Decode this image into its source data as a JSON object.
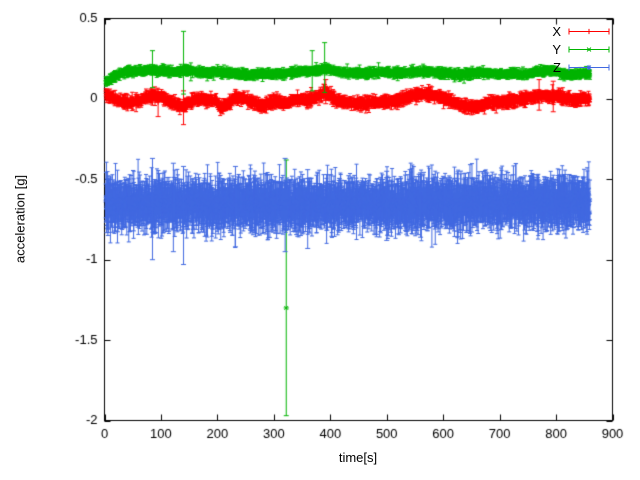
{
  "chart_data": {
    "type": "scatter",
    "style": "points-with-errorbars",
    "title": "",
    "xlabel": "time[s]",
    "ylabel": "acceleration [g]",
    "xlim": [
      0,
      900
    ],
    "ylim": [
      -2,
      0.5
    ],
    "xticks": [
      0,
      100,
      200,
      300,
      400,
      500,
      600,
      700,
      800,
      900
    ],
    "ytick_values": [
      0.5,
      0,
      -0.5,
      -1,
      -1.5,
      -2
    ],
    "ytick_labels": [
      "0.5",
      "0",
      "-0.5",
      "-1",
      "-1.5",
      "-2"
    ],
    "grid": false,
    "legend_position": "top-right",
    "background": "#ffffff",
    "axis_color": "#000000",
    "t_range": [
      2,
      860
    ],
    "t_step": 0.5,
    "seed": 7,
    "series": [
      {
        "name": "X",
        "color": "#ff0000",
        "marker": "plus",
        "noise": 0.008,
        "err_base": 0.013,
        "err_jitter": 0.014,
        "baseline": [
          [
            0,
            0.03
          ],
          [
            12,
            0.01
          ],
          [
            25,
            -0.01
          ],
          [
            40,
            -0.02
          ],
          [
            55,
            -0.015
          ],
          [
            70,
            0.005
          ],
          [
            85,
            0.02
          ],
          [
            100,
            0.015
          ],
          [
            112,
            -0.01
          ],
          [
            125,
            -0.025
          ],
          [
            138,
            -0.05
          ],
          [
            148,
            -0.03
          ],
          [
            160,
            -0.005
          ],
          [
            178,
            0.0
          ],
          [
            195,
            -0.01
          ],
          [
            208,
            -0.055
          ],
          [
            218,
            -0.035
          ],
          [
            232,
            0.005
          ],
          [
            248,
            0.0
          ],
          [
            262,
            -0.02
          ],
          [
            278,
            -0.045
          ],
          [
            292,
            -0.025
          ],
          [
            305,
            -0.01
          ],
          [
            318,
            -0.03
          ],
          [
            332,
            -0.015
          ],
          [
            345,
            0.0
          ],
          [
            360,
            -0.01
          ],
          [
            375,
            0.005
          ],
          [
            388,
            0.045
          ],
          [
            400,
            0.02
          ],
          [
            412,
            -0.01
          ],
          [
            428,
            -0.02
          ],
          [
            445,
            -0.025
          ],
          [
            460,
            -0.03
          ],
          [
            478,
            -0.02
          ],
          [
            495,
            -0.02
          ],
          [
            512,
            -0.012
          ],
          [
            528,
            0.0
          ],
          [
            545,
            0.018
          ],
          [
            562,
            0.03
          ],
          [
            578,
            0.028
          ],
          [
            592,
            0.012
          ],
          [
            605,
            0.0
          ],
          [
            620,
            -0.02
          ],
          [
            635,
            -0.04
          ],
          [
            650,
            -0.05
          ],
          [
            665,
            -0.04
          ],
          [
            680,
            -0.028
          ],
          [
            695,
            -0.02
          ],
          [
            712,
            -0.018
          ],
          [
            728,
            -0.01
          ],
          [
            742,
            0.0
          ],
          [
            758,
            0.012
          ],
          [
            772,
            0.022
          ],
          [
            788,
            0.012
          ],
          [
            802,
            0.02
          ],
          [
            818,
            0.002
          ],
          [
            832,
            -0.008
          ],
          [
            845,
            -0.002
          ],
          [
            860,
            0.0
          ]
        ],
        "outliers": [
          {
            "t": 140,
            "v": -0.05,
            "lo": -0.16,
            "hi": 0.05
          },
          {
            "t": 95,
            "v": -0.02,
            "lo": -0.11,
            "hi": 0.06
          },
          {
            "t": 392,
            "v": 0.05,
            "lo": -0.03,
            "hi": 0.12
          },
          {
            "t": 770,
            "v": 0.03,
            "lo": -0.07,
            "hi": 0.12
          },
          {
            "t": 795,
            "v": 0.02,
            "lo": -0.08,
            "hi": 0.11
          }
        ]
      },
      {
        "name": "Y",
        "color": "#00b400",
        "marker": "times",
        "noise": 0.006,
        "err_base": 0.011,
        "err_jitter": 0.011,
        "baseline": [
          [
            0,
            0.1
          ],
          [
            10,
            0.12
          ],
          [
            22,
            0.145
          ],
          [
            35,
            0.165
          ],
          [
            50,
            0.172
          ],
          [
            70,
            0.175
          ],
          [
            90,
            0.178
          ],
          [
            110,
            0.172
          ],
          [
            130,
            0.172
          ],
          [
            145,
            0.178
          ],
          [
            162,
            0.17
          ],
          [
            180,
            0.162
          ],
          [
            200,
            0.168
          ],
          [
            220,
            0.16
          ],
          [
            240,
            0.152
          ],
          [
            260,
            0.152
          ],
          [
            280,
            0.158
          ],
          [
            300,
            0.152
          ],
          [
            320,
            0.158
          ],
          [
            340,
            0.168
          ],
          [
            360,
            0.172
          ],
          [
            380,
            0.178
          ],
          [
            393,
            0.188
          ],
          [
            408,
            0.172
          ],
          [
            428,
            0.162
          ],
          [
            448,
            0.16
          ],
          [
            468,
            0.16
          ],
          [
            488,
            0.168
          ],
          [
            508,
            0.162
          ],
          [
            528,
            0.16
          ],
          [
            548,
            0.168
          ],
          [
            568,
            0.17
          ],
          [
            588,
            0.162
          ],
          [
            608,
            0.16
          ],
          [
            628,
            0.152
          ],
          [
            648,
            0.158
          ],
          [
            668,
            0.16
          ],
          [
            688,
            0.158
          ],
          [
            708,
            0.152
          ],
          [
            728,
            0.158
          ],
          [
            748,
            0.152
          ],
          [
            768,
            0.168
          ],
          [
            788,
            0.178
          ],
          [
            802,
            0.17
          ],
          [
            816,
            0.152
          ],
          [
            830,
            0.15
          ],
          [
            845,
            0.158
          ],
          [
            860,
            0.158
          ]
        ],
        "outliers": [
          {
            "t": 322,
            "v": -1.3,
            "lo": -1.97,
            "hi": -0.38
          },
          {
            "t": 140,
            "v": 0.18,
            "lo": 0.03,
            "hi": 0.42
          },
          {
            "t": 85,
            "v": 0.18,
            "lo": 0.07,
            "hi": 0.3
          },
          {
            "t": 390,
            "v": 0.19,
            "lo": 0.04,
            "hi": 0.35
          },
          {
            "t": 368,
            "v": 0.17,
            "lo": 0.05,
            "hi": 0.3
          }
        ]
      },
      {
        "name": "Z",
        "color": "#4169e1",
        "marker": "star",
        "noise": 0.028,
        "err_base": 0.07,
        "err_jitter": 0.055,
        "baseline": [
          [
            0,
            -0.64
          ],
          [
            20,
            -0.655
          ],
          [
            40,
            -0.65
          ],
          [
            60,
            -0.66
          ],
          [
            80,
            -0.658
          ],
          [
            100,
            -0.65
          ],
          [
            120,
            -0.66
          ],
          [
            140,
            -0.662
          ],
          [
            160,
            -0.652
          ],
          [
            180,
            -0.658
          ],
          [
            200,
            -0.66
          ],
          [
            220,
            -0.652
          ],
          [
            240,
            -0.658
          ],
          [
            260,
            -0.65
          ],
          [
            280,
            -0.66
          ],
          [
            300,
            -0.658
          ],
          [
            320,
            -0.65
          ],
          [
            340,
            -0.66
          ],
          [
            360,
            -0.66
          ],
          [
            380,
            -0.652
          ],
          [
            400,
            -0.658
          ],
          [
            420,
            -0.66
          ],
          [
            440,
            -0.658
          ],
          [
            460,
            -0.65
          ],
          [
            480,
            -0.658
          ],
          [
            500,
            -0.65
          ],
          [
            520,
            -0.658
          ],
          [
            540,
            -0.65
          ],
          [
            560,
            -0.658
          ],
          [
            580,
            -0.65
          ],
          [
            600,
            -0.65
          ],
          [
            620,
            -0.658
          ],
          [
            640,
            -0.65
          ],
          [
            660,
            -0.65
          ],
          [
            680,
            -0.642
          ],
          [
            700,
            -0.648
          ],
          [
            720,
            -0.65
          ],
          [
            740,
            -0.642
          ],
          [
            760,
            -0.648
          ],
          [
            780,
            -0.65
          ],
          [
            800,
            -0.642
          ],
          [
            820,
            -0.648
          ],
          [
            840,
            -0.648
          ],
          [
            860,
            -0.648
          ]
        ],
        "outliers": [
          {
            "t": 85,
            "v": -0.66,
            "lo": -1.0,
            "hi": -0.37
          },
          {
            "t": 140,
            "v": -0.67,
            "lo": -1.03,
            "hi": -0.42
          },
          {
            "t": 122,
            "v": -0.66,
            "lo": -0.95,
            "hi": -0.4
          },
          {
            "t": 232,
            "v": -0.66,
            "lo": -0.92,
            "hi": -0.42
          },
          {
            "t": 320,
            "v": -0.65,
            "lo": -0.95,
            "hi": -0.37
          },
          {
            "t": 360,
            "v": -0.68,
            "lo": -0.93,
            "hi": -0.44
          },
          {
            "t": 500,
            "v": -0.66,
            "lo": -0.88,
            "hi": -0.45
          },
          {
            "t": 560,
            "v": -0.66,
            "lo": -0.86,
            "hi": -0.46
          }
        ]
      }
    ]
  }
}
